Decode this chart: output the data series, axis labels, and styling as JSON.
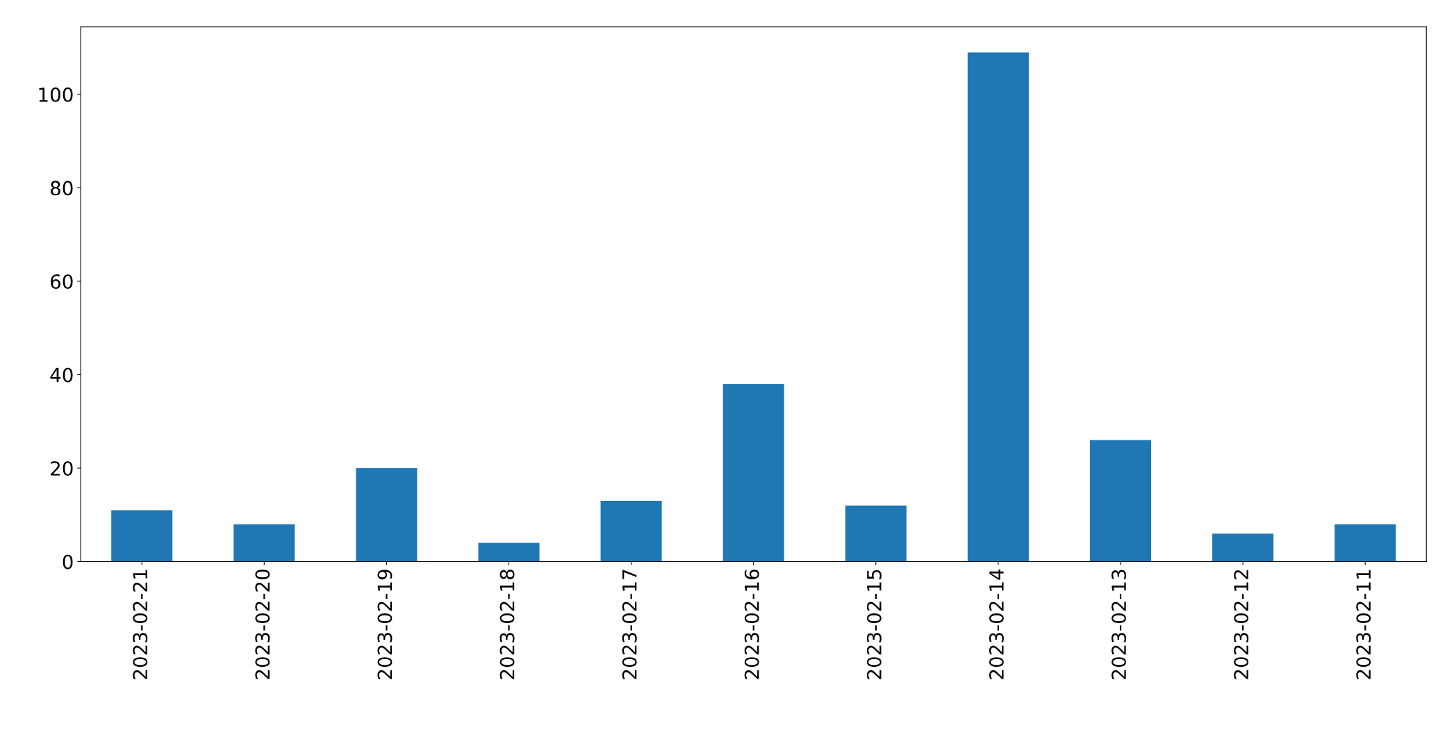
{
  "chart_data": {
    "type": "bar",
    "categories": [
      "2023-02-21",
      "2023-02-20",
      "2023-02-19",
      "2023-02-18",
      "2023-02-17",
      "2023-02-16",
      "2023-02-15",
      "2023-02-14",
      "2023-02-13",
      "2023-02-12",
      "2023-02-11"
    ],
    "values": [
      11,
      8,
      20,
      4,
      13,
      38,
      12,
      109,
      26,
      6,
      8
    ],
    "color": "#1f77b4",
    "ylim": [
      0,
      114.45
    ],
    "yticks": [
      0,
      20,
      40,
      60,
      80,
      100
    ],
    "grid": false,
    "legend": false
  }
}
